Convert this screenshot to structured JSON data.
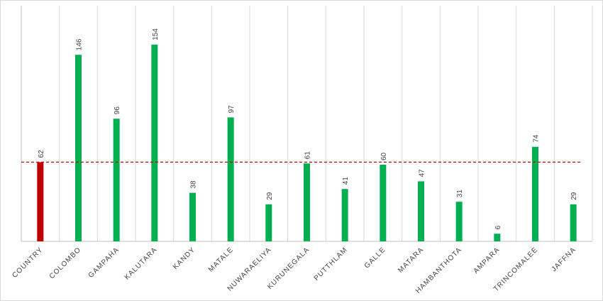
{
  "chart_data": {
    "type": "bar",
    "categories": [
      "COUNTRY",
      "COLOMBO",
      "GAMPAHA",
      "KALUTARA",
      "KANDY",
      "MATALE",
      "NUWARAELIYA",
      "KURUNEGALA",
      "PUTTHLAM",
      "GALLE",
      "MATARA",
      "HAMBANTHOTA",
      "AMPARA",
      "TRINCOMALEE",
      "JAFFNA"
    ],
    "values": [
      62,
      146,
      96,
      154,
      38,
      97,
      29,
      61,
      41,
      60,
      47,
      31,
      6,
      74,
      29
    ],
    "colors": [
      "#c00000",
      "#00b050",
      "#00b050",
      "#00b050",
      "#00b050",
      "#00b050",
      "#00b050",
      "#00b050",
      "#00b050",
      "#00b050",
      "#00b050",
      "#00b050",
      "#00b050",
      "#00b050",
      "#00b050"
    ],
    "ylim": [
      0,
      180
    ],
    "reference_line": {
      "value": 62,
      "color": "#c00000",
      "dashed": true
    },
    "grid": true
  }
}
